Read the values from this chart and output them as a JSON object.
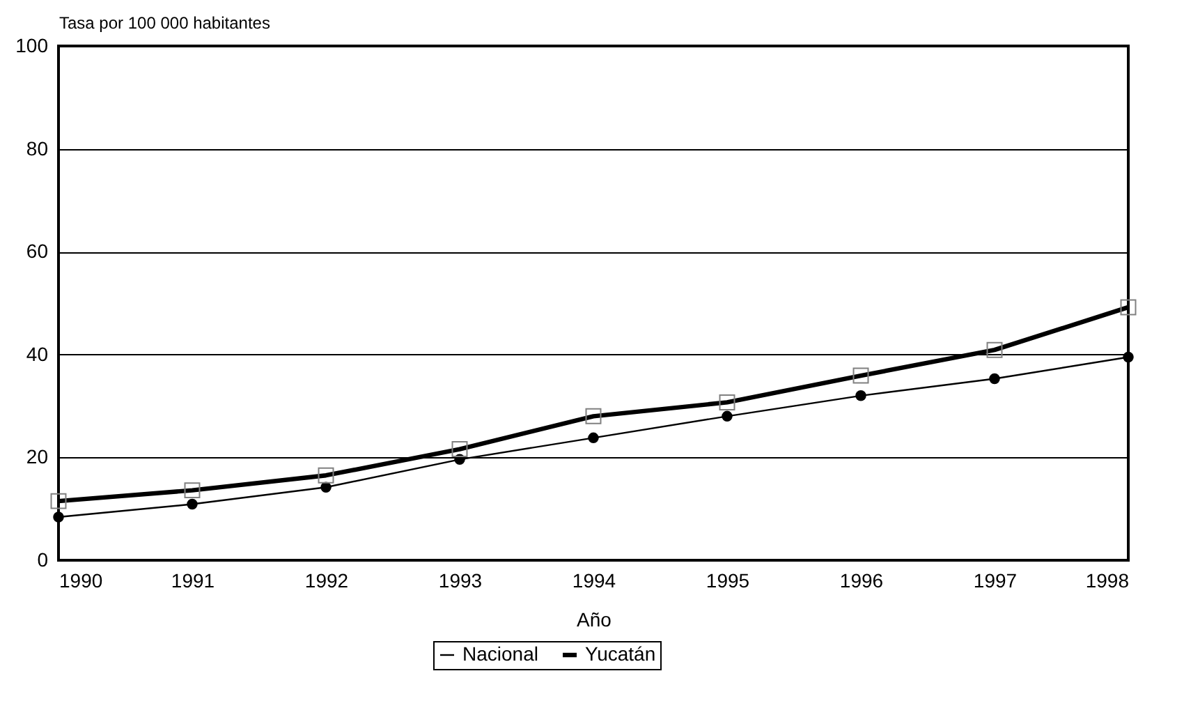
{
  "chart_data": {
    "type": "line",
    "xlabel": "Año",
    "ylabel": "Tasa por 100 000 habitantes",
    "x": [
      1990,
      1991,
      1992,
      1993,
      1994,
      1995,
      1996,
      1997,
      1998
    ],
    "series": [
      {
        "name": "Nacional",
        "color": "#000000",
        "marker": "circle",
        "values": [
          8.4,
          10.9,
          14.2,
          19.6,
          23.8,
          28.0,
          32.0,
          35.3,
          39.5
        ]
      },
      {
        "name": "Yucatán",
        "color": "#000000",
        "marker": "square",
        "values": [
          11.5,
          13.6,
          16.5,
          21.6,
          28.0,
          30.7,
          35.9,
          40.9,
          49.2
        ]
      }
    ],
    "xlim": [
      1990,
      1998
    ],
    "xticks": [
      1990,
      1991,
      1992,
      1993,
      1994,
      1995,
      1996,
      1997,
      1998
    ],
    "ylim": [
      0,
      100
    ],
    "yticks": [
      0,
      20,
      40,
      60,
      80,
      100
    ],
    "grid": "y",
    "legend": "bottom",
    "line_style": "solid"
  }
}
